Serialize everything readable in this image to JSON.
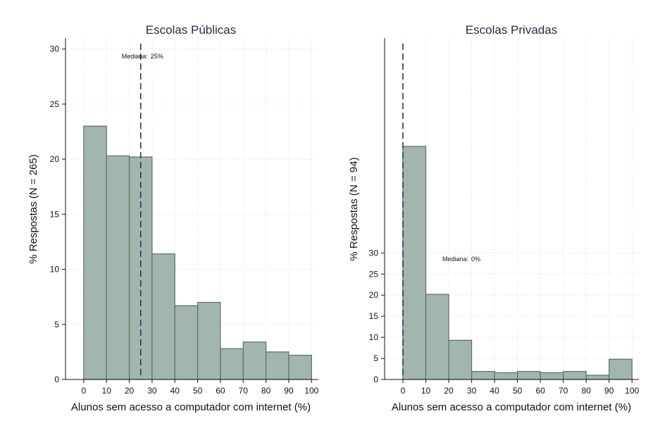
{
  "chart_data": [
    {
      "type": "bar",
      "title": "Escolas Públicas",
      "xlabel": "Alunos sem acesso a computador com internet (%)",
      "ylabel": "% Respostas (N = 265)",
      "bin_edges": [
        0,
        10,
        20,
        30,
        40,
        50,
        60,
        70,
        80,
        90,
        100
      ],
      "values": [
        23.0,
        20.3,
        20.2,
        11.4,
        6.7,
        7.0,
        2.8,
        3.4,
        2.5,
        2.2
      ],
      "xlim": [
        -8,
        103
      ],
      "ylim": [
        0,
        31
      ],
      "xticks": [
        0,
        10,
        20,
        30,
        40,
        50,
        60,
        70,
        80,
        90,
        100
      ],
      "yticks": [
        0,
        5,
        10,
        15,
        20,
        25,
        30
      ],
      "median": {
        "value": 25,
        "label": "Mediana:",
        "value_label": "25%"
      },
      "bar_color": "#a2b5ae",
      "grid": true
    },
    {
      "type": "bar",
      "title": "Escolas Privadas",
      "xlabel": "Alunos sem acesso a computador com internet (%)",
      "ylabel": "% Respostas (N = 94)",
      "bin_edges": [
        0,
        10,
        20,
        30,
        40,
        50,
        60,
        70,
        80,
        90,
        100
      ],
      "values": [
        55.3,
        20.2,
        9.3,
        1.9,
        1.6,
        1.9,
        1.6,
        1.9,
        1.0,
        4.8
      ],
      "xlim": [
        -8,
        103
      ],
      "ylim": [
        0,
        81
      ],
      "xticks": [
        0,
        10,
        20,
        30,
        40,
        50,
        60,
        70,
        80,
        90,
        100
      ],
      "yticks": [
        0,
        5,
        10,
        15,
        20,
        25,
        30
      ],
      "median": {
        "value": 0,
        "label": "Mediana:",
        "value_label": "0%"
      },
      "bar_color": "#a2b5ae",
      "grid": true
    }
  ]
}
